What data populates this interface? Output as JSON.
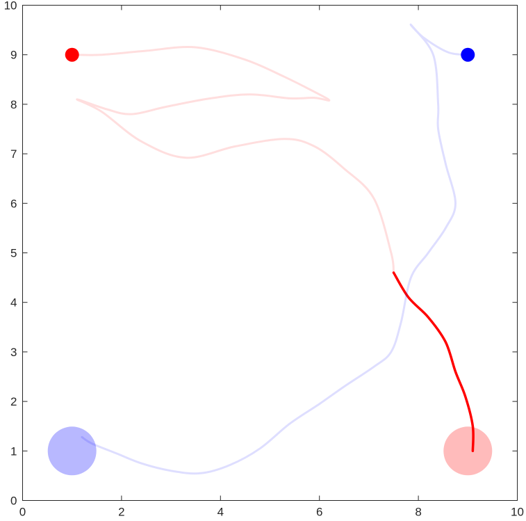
{
  "chart_data": {
    "type": "line",
    "title": "",
    "xlabel": "",
    "ylabel": "",
    "xlim": [
      0,
      10
    ],
    "ylim": [
      0,
      10
    ],
    "xticks": [
      "0",
      "2",
      "4",
      "6",
      "8",
      "10"
    ],
    "yticks": [
      "0",
      "1",
      "2",
      "3",
      "4",
      "5",
      "6",
      "7",
      "8",
      "9",
      "10"
    ],
    "grid": false,
    "legend": "none",
    "series": [
      {
        "color": "#ff0000",
        "style": "faded trail",
        "x": [
          1.0,
          1.6,
          2.5,
          3.5,
          4.5,
          5.3,
          5.9,
          6.2,
          5.9,
          5.4,
          4.6,
          3.8,
          2.9,
          2.2,
          1.7,
          1.1,
          1.6,
          2.4,
          3.3,
          4.3,
          5.3,
          5.9,
          6.5,
          7.1,
          7.45,
          7.5
        ],
        "y": [
          9.0,
          9.0,
          9.08,
          9.15,
          8.9,
          8.55,
          8.25,
          8.08,
          8.13,
          8.12,
          8.2,
          8.12,
          7.95,
          7.8,
          7.9,
          8.1,
          7.85,
          7.25,
          6.92,
          7.15,
          7.3,
          7.15,
          6.7,
          6.1,
          5.0,
          4.6
        ]
      },
      {
        "color": "#ff0000",
        "style": "solid",
        "x": [
          7.5,
          7.8,
          8.2,
          8.55,
          8.75,
          8.95,
          9.1,
          9.1
        ],
        "y": [
          4.6,
          4.1,
          3.7,
          3.2,
          2.6,
          2.1,
          1.5,
          1.0
        ]
      },
      {
        "color": "#0000ff",
        "style": "faded trail",
        "x": [
          9.0,
          8.6,
          8.1,
          7.85,
          8.3,
          8.4,
          8.4,
          8.55,
          8.75,
          8.55,
          8.2,
          7.85,
          7.65,
          7.45,
          7.1,
          6.5,
          6.0,
          5.4,
          4.8,
          4.2,
          3.6,
          3.0,
          2.4,
          1.9,
          1.4,
          1.2
        ],
        "y": [
          9.0,
          9.05,
          9.35,
          9.6,
          9.0,
          8.0,
          7.5,
          6.8,
          6.0,
          5.5,
          5.0,
          4.5,
          3.6,
          3.0,
          2.7,
          2.3,
          1.95,
          1.55,
          1.05,
          0.72,
          0.55,
          0.6,
          0.75,
          0.95,
          1.15,
          1.28
        ]
      }
    ],
    "markers": [
      {
        "x": 1,
        "y": 9,
        "color": "#ff0000",
        "kind": "start-dot"
      },
      {
        "x": 9,
        "y": 9,
        "color": "#0000ff",
        "kind": "start-dot"
      },
      {
        "x": 1,
        "y": 1,
        "color": "#b8b8ff",
        "kind": "goal-disc"
      },
      {
        "x": 9,
        "y": 1,
        "color": "#ffbbbb",
        "kind": "goal-disc"
      }
    ]
  }
}
